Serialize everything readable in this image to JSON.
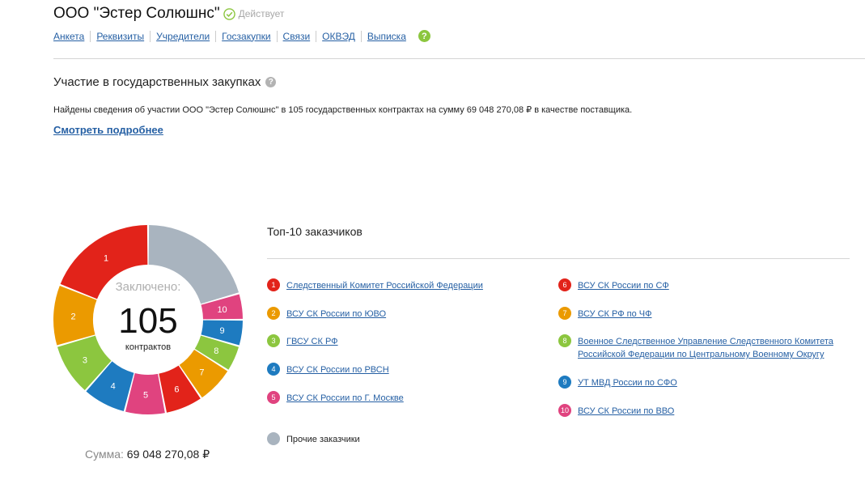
{
  "header": {
    "company": "ООО \"Эстер Солюшнс\"",
    "status": "Действует",
    "tabs": [
      "Анкета",
      "Реквизиты",
      "Учредители",
      "Госзакупки",
      "Связи",
      "ОКВЭД",
      "Выписка"
    ],
    "help_glyph": "?"
  },
  "section": {
    "title": "Участие в государственных закупках",
    "help_glyph": "?",
    "found_text": "Найдены сведения об участии ООО \"Эстер Солюшнс\" в 105 государственных контрактах на сумму 69 048 270,08 ₽ в качестве поставщика.",
    "more_link": "Смотреть подробнее"
  },
  "donut": {
    "label": "Заключено:",
    "value": "105",
    "unit": "контрактов",
    "sum_label": "Сумма:",
    "sum_value": "69 048 270,08 ₽"
  },
  "top": {
    "title": "Топ-10 заказчиков",
    "customers": [
      {
        "num": "1",
        "name": "Следственный Комитет Российской Федерации",
        "color": "#e2231a"
      },
      {
        "num": "2",
        "name": "ВСУ СК России по ЮВО",
        "color": "#eb9a00"
      },
      {
        "num": "3",
        "name": "ГВСУ СК РФ",
        "color": "#8cc63f"
      },
      {
        "num": "4",
        "name": "ВСУ СК России по РВСН",
        "color": "#1e7bc0"
      },
      {
        "num": "5",
        "name": "ВСУ СК России по Г. Москве",
        "color": "#e0437f"
      },
      {
        "num": "6",
        "name": "ВСУ СК России по СФ",
        "color": "#e2231a"
      },
      {
        "num": "7",
        "name": "ВСУ СК РФ по ЧФ",
        "color": "#eb9a00"
      },
      {
        "num": "8",
        "name": "Военное Следственное Управление Следственного Комитета Российской Федерации по Центральному Военному Округу",
        "color": "#8cc63f"
      },
      {
        "num": "9",
        "name": "УТ МВД России по СФО",
        "color": "#1e7bc0"
      },
      {
        "num": "10",
        "name": "ВСУ СК России по ВВО",
        "color": "#e0437f"
      }
    ],
    "others": {
      "name": "Прочие заказчики",
      "color": "#a9b4bf"
    }
  },
  "chart_data": {
    "type": "pie",
    "title": "",
    "slices": [
      {
        "label": "Прочие заказчики",
        "value": 20.5,
        "color": "#a9b4bf"
      },
      {
        "label": "10",
        "value": 4.5,
        "color": "#e0437f"
      },
      {
        "label": "9",
        "value": 4.5,
        "color": "#1e7bc0"
      },
      {
        "label": "8",
        "value": 4.5,
        "color": "#8cc63f"
      },
      {
        "label": "7",
        "value": 6.5,
        "color": "#eb9a00"
      },
      {
        "label": "6",
        "value": 6.5,
        "color": "#e2231a"
      },
      {
        "label": "5",
        "value": 7,
        "color": "#e0437f"
      },
      {
        "label": "4",
        "value": 7.5,
        "color": "#1e7bc0"
      },
      {
        "label": "3",
        "value": 9,
        "color": "#8cc63f"
      },
      {
        "label": "2",
        "value": 10.5,
        "color": "#eb9a00"
      },
      {
        "label": "1",
        "value": 19,
        "color": "#e2231a"
      }
    ]
  }
}
